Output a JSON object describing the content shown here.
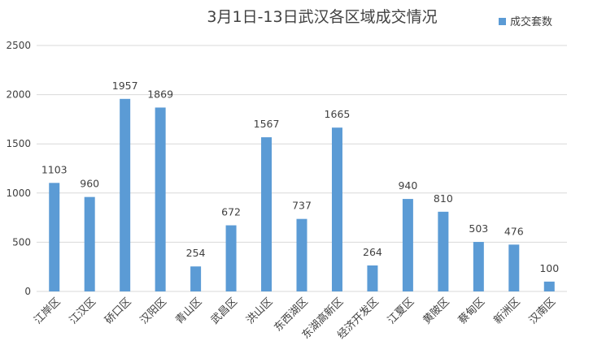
{
  "chart_data": {
    "type": "bar",
    "title": "3月1日-13日武汉各区域成交情况",
    "xlabel": "",
    "ylabel": "",
    "categories": [
      "江岸区",
      "江汉区",
      "硚口区",
      "汉阳区",
      "青山区",
      "武昌区",
      "洪山区",
      "东西湖区",
      "东湖高新区",
      "经济开发区",
      "江夏区",
      "黄陂区",
      "蔡甸区",
      "新洲区",
      "汉南区"
    ],
    "series": [
      {
        "name": "成交套数",
        "values": [
          1103,
          960,
          1957,
          1869,
          254,
          672,
          1567,
          737,
          1665,
          264,
          940,
          810,
          503,
          476,
          100
        ],
        "color": "#5b9bd5"
      }
    ],
    "ylim": [
      0,
      2500
    ],
    "yticks": [
      0,
      500,
      1000,
      1500,
      2000,
      2500
    ],
    "grid": true,
    "legend_position": "top-right",
    "gridline_color": "#d9d9d9"
  }
}
